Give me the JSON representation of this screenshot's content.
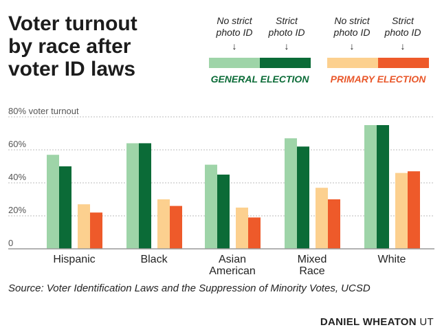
{
  "title": "Voter turnout\nby race after\nvoter ID laws",
  "legend": {
    "no_strict": "No strict\nphoto ID",
    "strict": "Strict\nphoto ID",
    "general_label": "GENERAL ELECTION",
    "primary_label": "PRIMARY ELECTION"
  },
  "colors": {
    "general_no_strict": "#9ed4a8",
    "general_strict": "#0b6b37",
    "primary_no_strict": "#fcd08f",
    "primary_strict": "#ee5a2a",
    "general_text": "#0b6b37",
    "primary_text": "#e9572a",
    "axis": "#999999",
    "grid": "#bbbbbb"
  },
  "chart_data": {
    "type": "bar",
    "categories": [
      "Hispanic",
      "Black",
      "Asian\nAmerican",
      "Mixed\nRace",
      "White"
    ],
    "series": [
      {
        "group": "GENERAL ELECTION",
        "name": "No strict photo ID",
        "values": [
          57,
          64,
          51,
          67,
          75
        ]
      },
      {
        "group": "GENERAL ELECTION",
        "name": "Strict photo ID",
        "values": [
          50,
          64,
          45,
          62,
          75
        ]
      },
      {
        "group": "PRIMARY ELECTION",
        "name": "No strict photo ID",
        "values": [
          27,
          30,
          25,
          37,
          46
        ]
      },
      {
        "group": "PRIMARY ELECTION",
        "name": "Strict photo ID",
        "values": [
          22,
          26,
          19,
          30,
          47
        ]
      }
    ],
    "yticks": [
      0,
      20,
      40,
      60,
      80
    ],
    "ytick_labels": [
      "0",
      "20%",
      "40%",
      "60%",
      "80% voter turnout"
    ],
    "ylim": [
      0,
      80
    ],
    "grid": true
  },
  "source": "Source: Voter Identification Laws and the Suppression of Minority Votes,  UCSD",
  "credit": {
    "author": "DANIEL WHEATON",
    "outlet": "UT"
  }
}
